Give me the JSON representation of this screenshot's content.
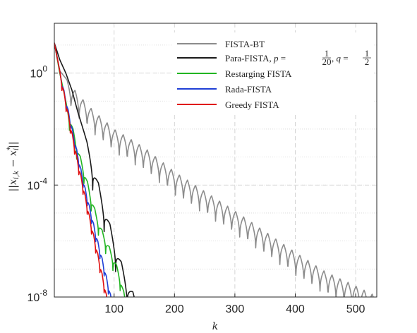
{
  "chart_data": {
    "type": "line",
    "title": "",
    "xlabel": "k",
    "ylabel": "||x_{i,k} − x_i^*||",
    "y_scale": "log",
    "xlim": [
      1,
      535
    ],
    "ylim": [
      1e-08,
      60
    ],
    "x_ticks": [
      100,
      200,
      300,
      400,
      500
    ],
    "y_ticks": [
      {
        "value": 1,
        "base": "10",
        "exp": "0"
      },
      {
        "value": 0.0001,
        "base": "10",
        "exp": "-4"
      },
      {
        "value": 1e-08,
        "base": "10",
        "exp": "-8"
      }
    ],
    "grid": true,
    "legend_position": "top-right",
    "series": [
      {
        "name": "FISTA-BT",
        "color": "#8c8c8c",
        "trend": [
          [
            1,
            12
          ],
          [
            10,
            1.2
          ],
          [
            20,
            0.65
          ],
          [
            40,
            0.18
          ],
          [
            60,
            0.06
          ],
          [
            100,
            0.01
          ],
          [
            150,
            0.0022
          ],
          [
            200,
            0.0003
          ],
          [
            250,
            6e-05
          ],
          [
            300,
            1.2e-05
          ],
          [
            350,
            2.2e-06
          ],
          [
            400,
            4e-07
          ],
          [
            450,
            8e-08
          ],
          [
            500,
            2.5e-08
          ],
          [
            530,
            1.2e-08
          ]
        ],
        "dip_start": 22,
        "dip_period": 13.3,
        "dip_depth": 4
      },
      {
        "name": "Para-FISTA, p = 1/20, q = 1/2",
        "name_parts": {
          "main": "Para-FISTA, ",
          "p_var": "p",
          "p_num": "1",
          "p_den": "20",
          "q_var": "q",
          "q_num": "1",
          "q_den": "2"
        },
        "color": "#1a1a1a",
        "trend": [
          [
            1,
            12
          ],
          [
            10,
            3
          ],
          [
            20,
            1
          ],
          [
            30,
            0.25
          ],
          [
            40,
            0.04
          ],
          [
            50,
            0.008
          ],
          [
            60,
            0.0015
          ],
          [
            80,
            4e-05
          ],
          [
            100,
            1.2e-06
          ],
          [
            120,
            5e-08
          ],
          [
            135,
            1e-08
          ]
        ],
        "dip_start": 55,
        "dip_period": 19,
        "dip_depth": 4
      },
      {
        "name": "Restarging FISTA",
        "color": "#22b522",
        "trend": [
          [
            1,
            12
          ],
          [
            10,
            1
          ],
          [
            20,
            0.1
          ],
          [
            30,
            0.015
          ],
          [
            40,
            0.002
          ],
          [
            50,
            0.0004
          ],
          [
            60,
            6e-05
          ],
          [
            70,
            1e-05
          ],
          [
            80,
            2.5e-06
          ],
          [
            90,
            8e-07
          ],
          [
            100,
            2.5e-07
          ],
          [
            110,
            6e-08
          ],
          [
            118,
            1e-08
          ]
        ],
        "dip_start": 20,
        "dip_period": 12,
        "dip_depth": 2.2
      },
      {
        "name": "Rada-FISTA",
        "color": "#1f3fd6",
        "trend": [
          [
            1,
            12
          ],
          [
            10,
            1.2
          ],
          [
            20,
            0.12
          ],
          [
            30,
            0.012
          ],
          [
            40,
            0.0012
          ],
          [
            50,
            0.00012
          ],
          [
            60,
            1.5e-05
          ],
          [
            70,
            1.8e-06
          ],
          [
            80,
            2.5e-07
          ],
          [
            90,
            3e-08
          ],
          [
            95,
            1e-08
          ]
        ],
        "dip_start": 10,
        "dip_period": 7,
        "dip_depth": 1.3
      },
      {
        "name": "Greedy FISTA",
        "color": "#e00f0f",
        "trend": [
          [
            1,
            12
          ],
          [
            10,
            1.2
          ],
          [
            20,
            0.1
          ],
          [
            30,
            0.008
          ],
          [
            40,
            0.0007
          ],
          [
            50,
            7e-05
          ],
          [
            60,
            6.5e-06
          ],
          [
            70,
            7e-07
          ],
          [
            80,
            7e-08
          ],
          [
            88,
            1e-08
          ]
        ],
        "dip_start": 10,
        "dip_period": 7,
        "dip_depth": 1.3
      }
    ]
  }
}
